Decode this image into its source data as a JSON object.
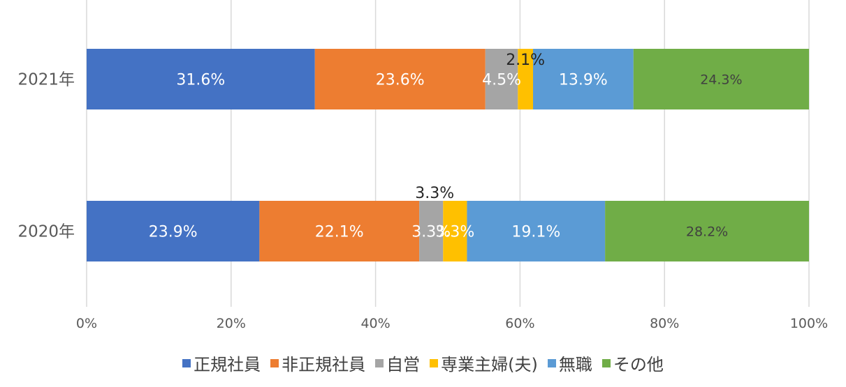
{
  "chart_data": {
    "type": "bar",
    "orientation": "horizontal",
    "stacked": "percent",
    "categories": [
      "2021年",
      "2020年"
    ],
    "series": [
      {
        "name": "正規社員",
        "color": "#4472C4",
        "values": [
          31.6,
          23.9
        ],
        "labels": [
          "31.6%",
          "23.9%"
        ]
      },
      {
        "name": "非正規社員",
        "color": "#ED7D31",
        "values": [
          23.6,
          22.1
        ],
        "labels": [
          "23.6%",
          "22.1%"
        ]
      },
      {
        "name": "自営",
        "color": "#A5A5A5",
        "values": [
          4.5,
          3.3
        ],
        "labels": [
          "4.5%",
          "3.3%"
        ]
      },
      {
        "name": "専業主婦(夫)",
        "color": "#FFC000",
        "values": [
          2.1,
          3.3
        ],
        "labels": [
          "2.1%",
          "3.3%"
        ]
      },
      {
        "name": "無職",
        "color": "#5B9BD5",
        "values": [
          13.9,
          19.1
        ],
        "labels": [
          "13.9%",
          "19.1%"
        ]
      },
      {
        "name": "その他",
        "color": "#70AD47",
        "values": [
          24.3,
          28.2
        ],
        "labels": [
          "24.3%",
          "28.2%"
        ]
      }
    ],
    "xaxis": {
      "ticks": [
        "0%",
        "20%",
        "40%",
        "60%",
        "80%",
        "100%"
      ],
      "range": [
        0,
        100
      ]
    },
    "grid": true,
    "legend_position": "bottom"
  }
}
